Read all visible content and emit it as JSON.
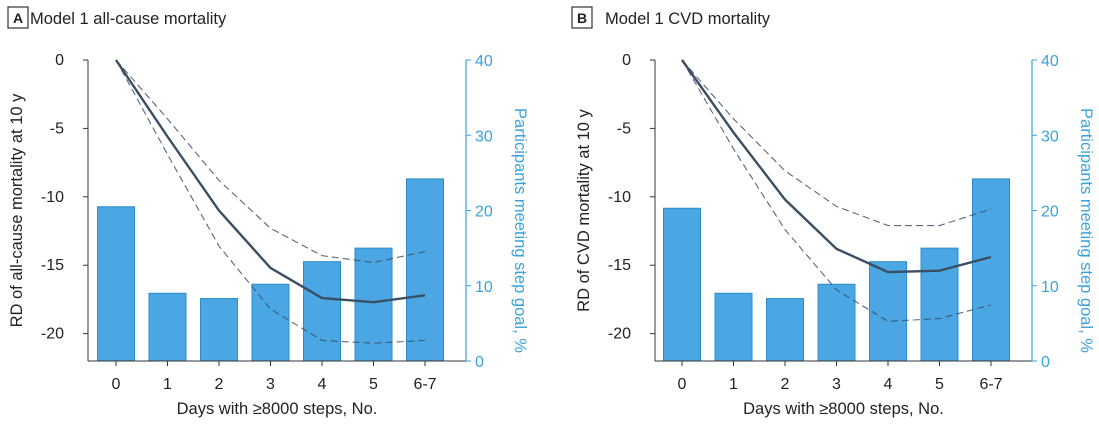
{
  "chart_data": [
    {
      "type": "bar",
      "panel_letter": "A",
      "title": "Model 1 all-cause mortality",
      "xlabel": "Days with ≥8000 steps, No.",
      "ylabel": "RD of all-cause mortality at 10 y",
      "y2label": "Participants meeting step goal, %",
      "categories": [
        "0",
        "1",
        "2",
        "3",
        "4",
        "5",
        "6-7"
      ],
      "ylim": [
        -22,
        0
      ],
      "yticks": [
        0,
        -5,
        -10,
        -15,
        -20
      ],
      "y2lim": [
        0,
        40
      ],
      "y2ticks": [
        40,
        30,
        20,
        10,
        0
      ],
      "series": [
        {
          "kind": "bar",
          "axis": "right",
          "values": [
            20.5,
            9,
            8.3,
            10.2,
            13.2,
            15,
            24.2
          ]
        },
        {
          "kind": "line",
          "axis": "left",
          "style": "solid",
          "values": [
            0,
            -5.6,
            -11,
            -15.2,
            -17.4,
            -17.7,
            -17.2
          ]
        },
        {
          "kind": "line",
          "axis": "left",
          "style": "dashed",
          "values": [
            0,
            -4.3,
            -8.8,
            -12.3,
            -14.3,
            -14.8,
            -14
          ]
        },
        {
          "kind": "line",
          "axis": "left",
          "style": "dashed",
          "values": [
            0,
            -6.9,
            -13.6,
            -18.2,
            -20.5,
            -20.7,
            -20.5
          ]
        }
      ],
      "colors": {
        "bars": "#4aa7e3",
        "bar_edge": "#2f8cc8",
        "line": "#3a4f64",
        "right_axis": "#3aa3dd"
      }
    },
    {
      "type": "bar",
      "panel_letter": "B",
      "title": "Model 1 CVD mortality",
      "xlabel": "Days with ≥8000 steps, No.",
      "ylabel": "RD of CVD mortality at 10 y",
      "y2label": "Participants meeting step goal, %",
      "categories": [
        "0",
        "1",
        "2",
        "3",
        "4",
        "5",
        "6-7"
      ],
      "ylim": [
        -22,
        0
      ],
      "yticks": [
        0,
        -5,
        -10,
        -15,
        -20
      ],
      "y2lim": [
        0,
        40
      ],
      "y2ticks": [
        40,
        30,
        20,
        10,
        0
      ],
      "series": [
        {
          "kind": "bar",
          "axis": "right",
          "values": [
            20.3,
            9,
            8.3,
            10.2,
            13.2,
            15,
            24.2
          ]
        },
        {
          "kind": "line",
          "axis": "left",
          "style": "solid",
          "values": [
            0,
            -5.3,
            -10.2,
            -13.8,
            -15.5,
            -15.4,
            -14.4
          ]
        },
        {
          "kind": "line",
          "axis": "left",
          "style": "dashed",
          "values": [
            0,
            -4.3,
            -8.1,
            -10.7,
            -12.1,
            -12.1,
            -10.9
          ]
        },
        {
          "kind": "line",
          "axis": "left",
          "style": "dashed",
          "values": [
            0,
            -6.5,
            -12.4,
            -16.8,
            -19.1,
            -18.9,
            -17.9
          ]
        }
      ],
      "colors": {
        "bars": "#4aa7e3",
        "bar_edge": "#2f8cc8",
        "line": "#3a4f64",
        "right_axis": "#3aa3dd"
      }
    }
  ]
}
